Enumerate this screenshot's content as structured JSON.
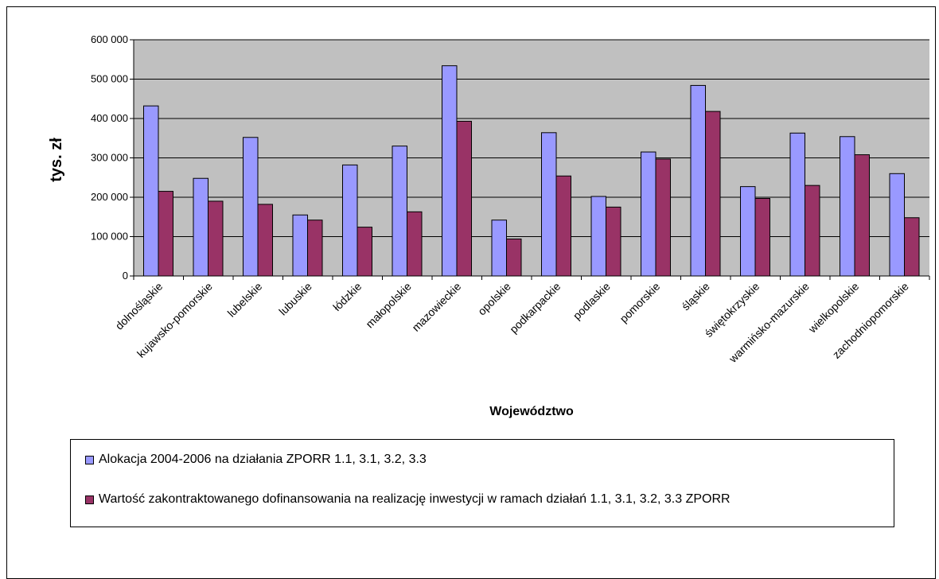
{
  "chart_data": {
    "type": "bar",
    "title": "",
    "xlabel": "Województwo",
    "ylabel": "tys. zł",
    "ylim": [
      0,
      600000
    ],
    "yticks": [
      0,
      100000,
      200000,
      300000,
      400000,
      500000,
      600000
    ],
    "ytick_labels": [
      "0",
      "100 000",
      "200 000",
      "300 000",
      "400 000",
      "500 000",
      "600 000"
    ],
    "grid": true,
    "plot_background": "#C0C0C0",
    "legend_position": "bottom",
    "categories": [
      "dolnośląskie",
      "kujawsko-pomorskie",
      "lubelskie",
      "lubuskie",
      "łódzkie",
      "małopolskie",
      "mazowieckie",
      "opolskie",
      "podkarpackie",
      "podlaskie",
      "pomorskie",
      "śląskie",
      "świętokrzyskie",
      "warmińsko-mazurskie",
      "wielkopolskie",
      "zachodniopomorskie"
    ],
    "series": [
      {
        "name": "Alokacja 2004-2006 na działania ZPORR 1.1, 3.1, 3.2, 3.3",
        "color": "#9999FF",
        "values": [
          432000,
          248000,
          352000,
          155000,
          282000,
          330000,
          534000,
          142000,
          364000,
          202000,
          315000,
          484000,
          227000,
          363000,
          354000,
          260000
        ]
      },
      {
        "name": "Wartość zakontraktowanego dofinansowania na realizację inwestycji w ramach działań 1.1, 3.1, 3.2, 3.3 ZPORR",
        "color": "#993366",
        "values": [
          215000,
          190000,
          182000,
          142000,
          124000,
          163000,
          393000,
          94000,
          254000,
          175000,
          297000,
          418000,
          197000,
          230000,
          308000,
          148000
        ]
      }
    ]
  }
}
